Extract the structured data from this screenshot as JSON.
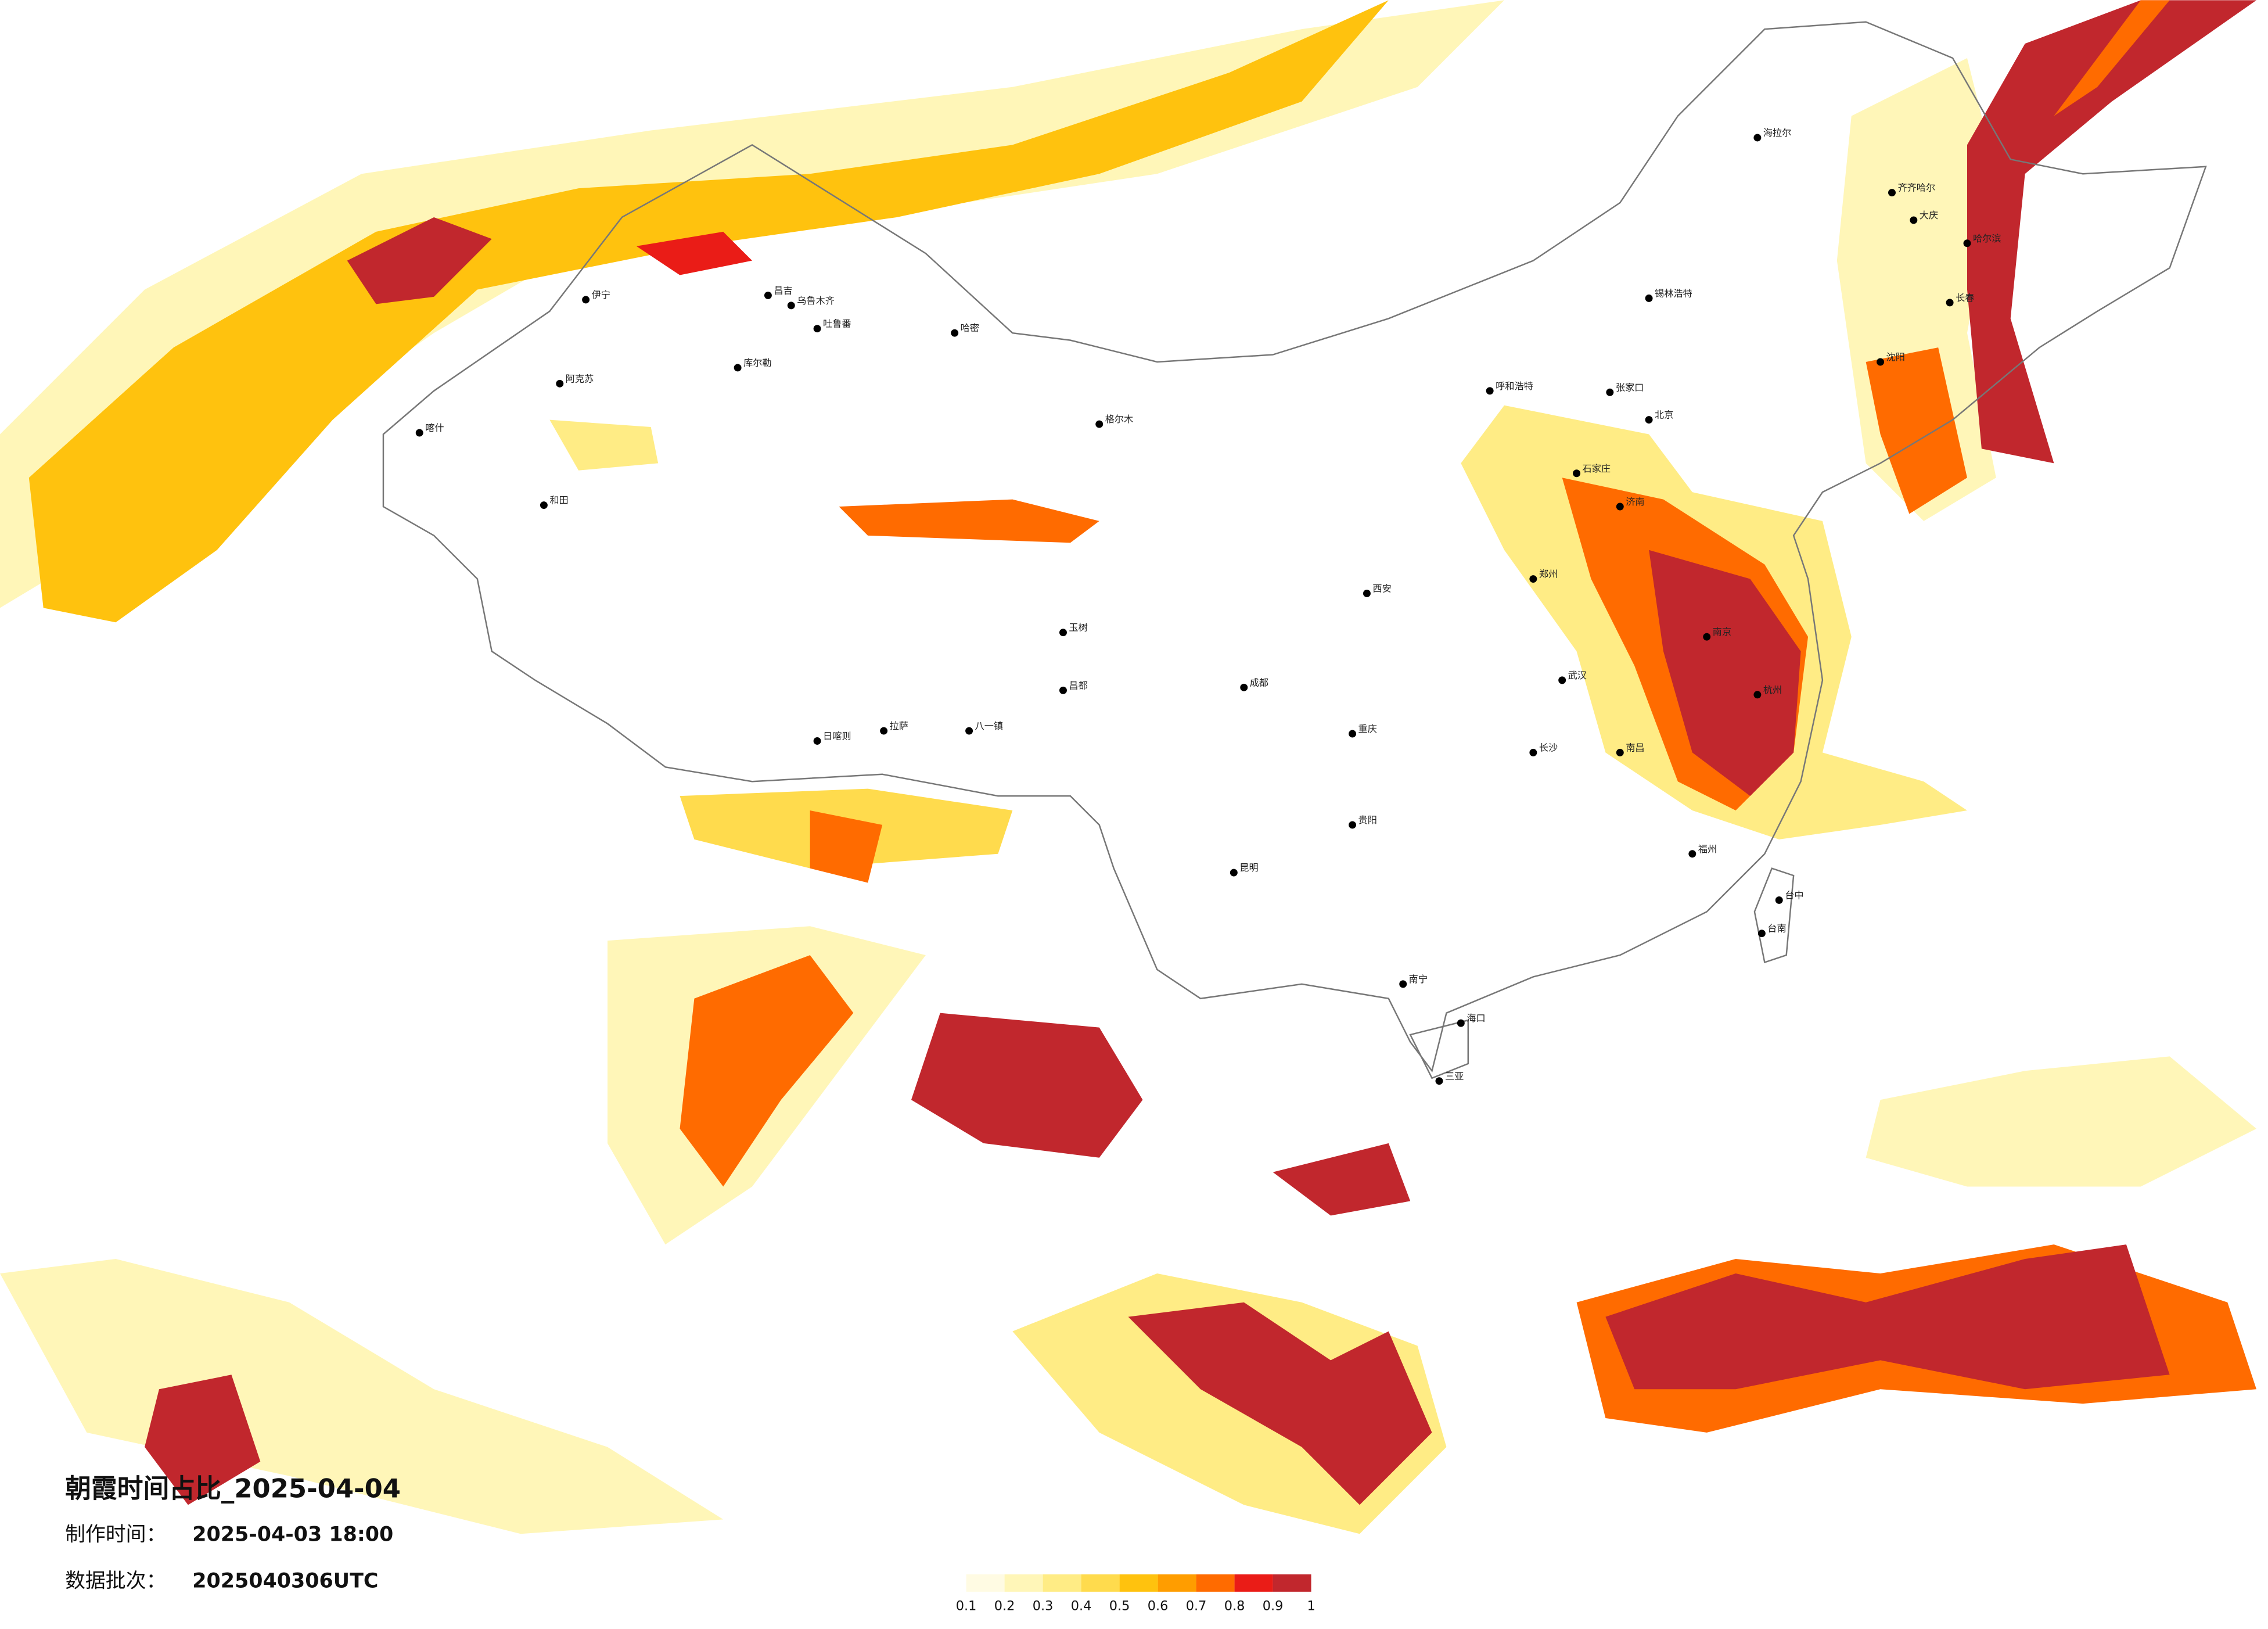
{
  "map": {
    "title": "朝霞时间占比_2025-04-04",
    "made_label": "制作时间：",
    "made_value": "2025-04-03 18:00",
    "batch_label": "数据批次：",
    "batch_value": "2025040306UTC",
    "colorbar": {
      "ticks": [
        0.1,
        0.2,
        0.3,
        0.4,
        0.5,
        0.6,
        0.7,
        0.8,
        0.9,
        1
      ],
      "colors": [
        "#fffbe3",
        "#fff6b8",
        "#ffec85",
        "#ffdb4d",
        "#ffc20e",
        "#ff9d00",
        "#ff6b00",
        "#ea1c17",
        "#c1272d"
      ]
    },
    "cities": [
      "伊宁",
      "昌吉",
      "乌鲁木齐",
      "吐鲁番",
      "哈密",
      "库尔勒",
      "阿克苏",
      "和田",
      "喀什",
      "拉萨",
      "日喀则",
      "八一镇",
      "昌都",
      "玉树",
      "格尔木",
      "海拉尔",
      "齐齐哈尔",
      "大庆",
      "哈尔滨",
      "长春",
      "沈阳",
      "锡林浩特",
      "呼和浩特",
      "张家口",
      "石家庄",
      "北京",
      "济南",
      "郑州",
      "西安",
      "成都",
      "重庆",
      "贵阳",
      "昆明",
      "南宁",
      "海口",
      "三亚",
      "台中",
      "台南",
      "南京",
      "杭州",
      "武汉",
      "长沙",
      "南昌",
      "福州"
    ]
  }
}
